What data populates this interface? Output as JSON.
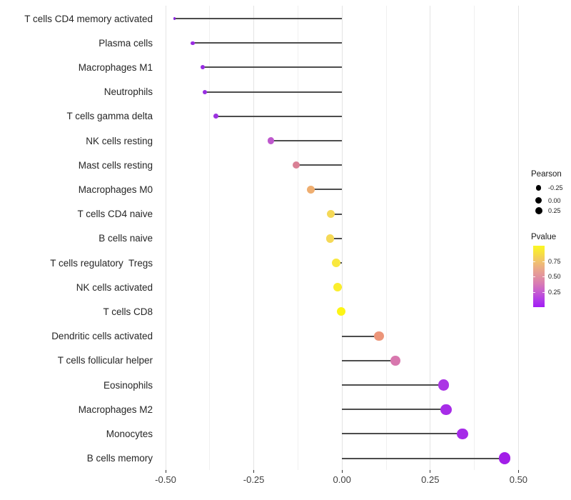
{
  "chart_data": {
    "type": "scatter",
    "subtype": "horizontal-lollipop",
    "title": "",
    "xlabel": "",
    "ylabel": "",
    "grid": "vertical major and minor gridlines, light gray, no panel border (theme_minimal)",
    "legend_position": "right",
    "xlim": [
      -0.53,
      0.53
    ],
    "x_ticks": [
      "-0.50",
      "-0.25",
      "0.00",
      "0.25",
      "0.50"
    ],
    "x_tick_values": [
      -0.5,
      -0.25,
      0,
      0.25,
      0.5
    ],
    "x_minor_values": [
      -0.375,
      -0.125,
      0.125,
      0.375
    ],
    "categories": [
      "T cells CD4 memory activated",
      "Plasma cells",
      "Macrophages M1",
      "Neutrophils",
      "T cells gamma delta",
      "NK cells resting",
      "Mast cells resting",
      "Macrophages M0",
      "T cells CD4 naive",
      "B cells naive",
      "T cells regulatory  Tregs",
      "NK cells activated",
      "T cells CD8",
      "Dendritic cells activated",
      "T cells follicular helper",
      "Eosinophils",
      "Macrophages M2",
      "Monocytes",
      "B cells memory"
    ],
    "series": [
      {
        "name": "Pearson",
        "values": [
          -0.475,
          -0.423,
          -0.394,
          -0.388,
          -0.358,
          -0.202,
          -0.13,
          -0.088,
          -0.032,
          -0.034,
          -0.017,
          -0.012,
          -0.003,
          0.105,
          0.151,
          0.287,
          0.295,
          0.341,
          0.461
        ]
      },
      {
        "name": "Pvalue (estimated from point color)",
        "values": [
          0.03,
          0.06,
          0.05,
          0.06,
          0.08,
          0.3,
          0.52,
          0.72,
          0.82,
          0.82,
          0.9,
          0.93,
          0.98,
          0.65,
          0.45,
          0.12,
          0.1,
          0.09,
          0.05
        ]
      }
    ],
    "point_colors": [
      "#8A24DD",
      "#9A2BE2",
      "#962BE2",
      "#982EE2",
      "#9C32E0",
      "#BE58CD",
      "#D98095",
      "#EFAE70",
      "#F5D957",
      "#F5D957",
      "#F9E83E",
      "#FBEE2D",
      "#FDF515",
      "#EC9579",
      "#D877AE",
      "#AB35E5",
      "#A72CE8",
      "#A52BE8",
      "#A21EE8"
    ],
    "stem_color": "#4d4d4d",
    "legend": {
      "size": {
        "title": "Pearson",
        "items": [
          {
            "label": "-0.25",
            "diameter": 7.5
          },
          {
            "label": "0.00",
            "diameter": 9.0
          },
          {
            "label": "0.25",
            "diameter": 10.0
          }
        ]
      },
      "color": {
        "title": "Pvalue",
        "ticks": [
          "0.75",
          "0.50",
          "0.25"
        ],
        "tick_values": [
          0.75,
          0.5,
          0.25
        ],
        "gradient_top_to_bottom": [
          "#FBF823",
          "#F1C46B",
          "#E2929F",
          "#C75DD0",
          "#A21CF4"
        ],
        "scale_top_value": 1.0,
        "scale_bottom_value": 0.0
      }
    }
  }
}
